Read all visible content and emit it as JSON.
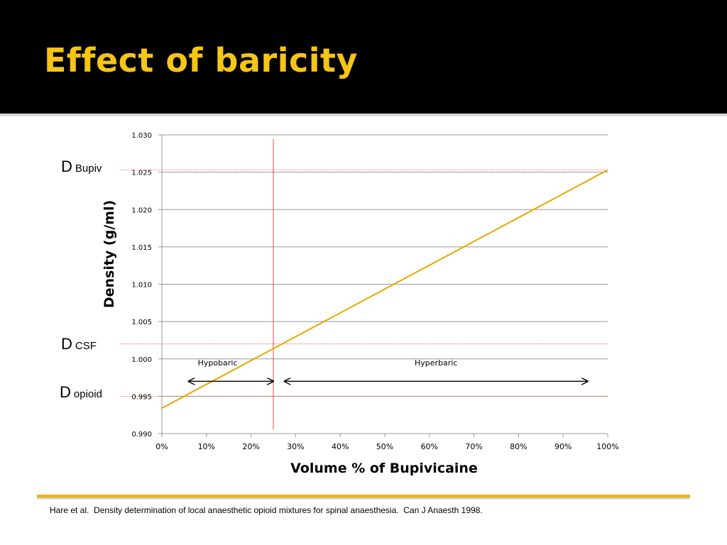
{
  "slide": {
    "title": "Effect of baricity",
    "citation": "Hare et al.  Density determination of local anaesthetic opioid mixtures for spinal anaesthesia.  Can J Anaesth 1998."
  },
  "side_labels": [
    {
      "main": "D",
      "sub": "Bupiv"
    },
    {
      "main": "D",
      "sub": "CSF"
    },
    {
      "main": "D",
      "sub": "opioid"
    }
  ],
  "colors": {
    "title": "#f5c518",
    "line": "#e8a800",
    "reference_lines": "#e05050",
    "grid": "#999999",
    "footer_rule": "#f0b400"
  },
  "chart_data": {
    "type": "line",
    "title": "",
    "xlabel": "Volume % of Bupivicaine",
    "ylabel": "Density (g/ml)",
    "xlim": [
      0,
      100
    ],
    "ylim": [
      0.99,
      1.03
    ],
    "x_ticks": [
      0,
      10,
      20,
      30,
      40,
      50,
      60,
      70,
      80,
      90,
      100
    ],
    "x_tick_labels": [
      "0%",
      "10%",
      "20%",
      "30%",
      "40%",
      "50%",
      "60%",
      "70%",
      "80%",
      "90%",
      "100%"
    ],
    "y_ticks": [
      0.99,
      0.995,
      1.0,
      1.005,
      1.01,
      1.015,
      1.02,
      1.025,
      1.03
    ],
    "y_tick_labels": [
      "0.990",
      "0.995",
      "1.000",
      "1.005",
      "1.010",
      "1.015",
      "1.020",
      "1.025",
      "1.030"
    ],
    "grid": true,
    "series": [
      {
        "x": [
          0,
          100
        ],
        "y": [
          0.9934,
          1.0253
        ]
      }
    ],
    "reference_lines": {
      "horizontal": [
        1.0253,
        1.002,
        0.995
      ],
      "vertical": [
        25
      ]
    },
    "annotations": [
      {
        "text": "Hypobaric",
        "x_range": [
          6,
          25
        ],
        "label_x": 12.5,
        "label_y": 0.9995
      },
      {
        "text": "Hyperbaric",
        "x_range": [
          27.5,
          95.5
        ],
        "label_x": 61.5,
        "label_y": 0.9995
      }
    ]
  }
}
